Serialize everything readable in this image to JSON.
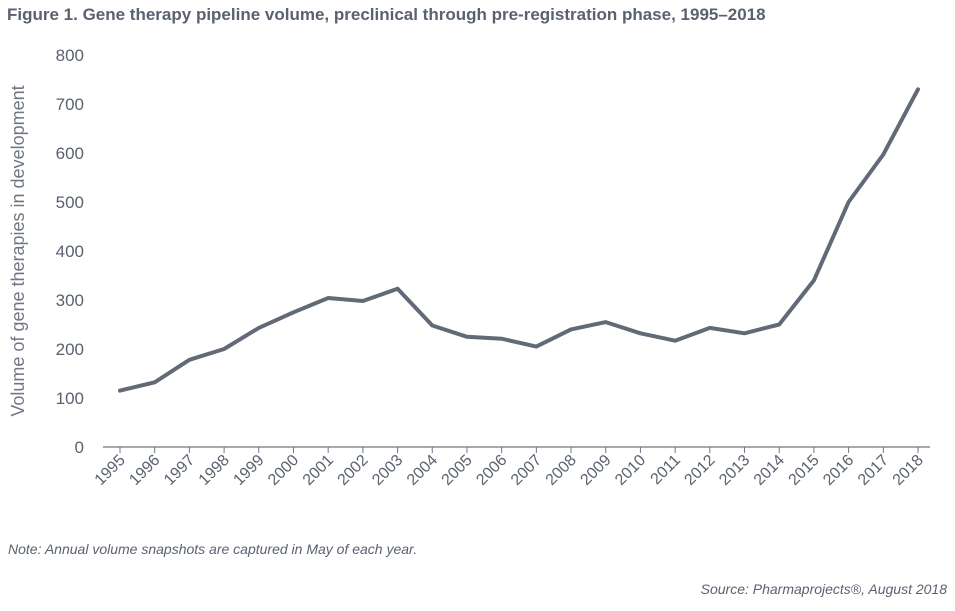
{
  "figure": {
    "title": "Figure 1. Gene therapy pipeline volume, preclinical through pre-registration phase, 1995–2018",
    "note": "Note: Annual volume snapshots are captured in May of each year.",
    "source": "Source: Pharmaprojects®, August 2018"
  },
  "colors": {
    "line": "#626a77",
    "axis": "#6f7783",
    "text": "#5a6270"
  },
  "chart_data": {
    "type": "line",
    "title": "",
    "xlabel": "",
    "ylabel": "Volume of gene therapies in development",
    "ylim": [
      0,
      800
    ],
    "yticks": [
      0,
      100,
      200,
      300,
      400,
      500,
      600,
      700,
      800
    ],
    "grid": false,
    "legend": "none",
    "categories": [
      "1995",
      "1996",
      "1997",
      "1998",
      "1999",
      "2000",
      "2001",
      "2002",
      "2003",
      "2004",
      "2005",
      "2006",
      "2007",
      "2008",
      "2009",
      "2010",
      "2011",
      "2012",
      "2013",
      "2014",
      "2015",
      "2016",
      "2017",
      "2018"
    ],
    "series": [
      {
        "values": [
          115,
          132,
          178,
          200,
          243,
          275,
          304,
          298,
          323,
          248,
          225,
          221,
          205,
          240,
          255,
          232,
          217,
          243,
          232,
          250,
          340,
          500,
          597,
          730
        ]
      }
    ]
  }
}
